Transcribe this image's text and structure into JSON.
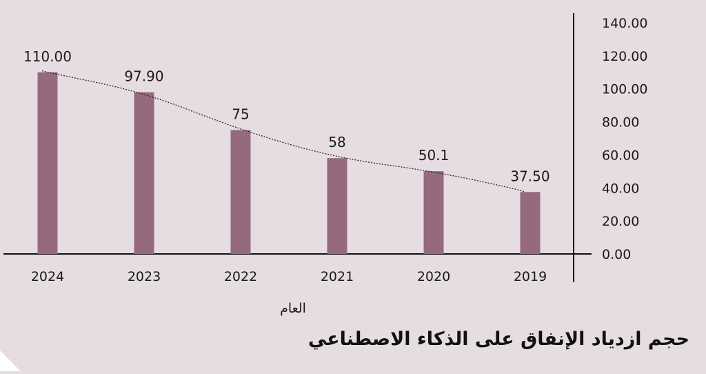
{
  "chart_data": {
    "type": "bar",
    "title": "حجم ازدياد الإنفاق على الذكاء الاصطناعي",
    "xlabel": "العام",
    "ylabel": "",
    "categories": [
      "2024",
      "2023",
      "2022",
      "2021",
      "2020",
      "2019"
    ],
    "values": [
      110.0,
      97.9,
      75,
      58,
      50.1,
      37.5
    ],
    "data_labels": [
      "110.00",
      "97.90",
      "75",
      "58",
      "50.1",
      "37.50"
    ],
    "ylim": [
      0,
      140
    ],
    "yticks": [
      "0.00",
      "20.00",
      "40.00",
      "60.00",
      "80.00",
      "100.00",
      "120.00",
      "140.00"
    ],
    "y_axis_side": "right",
    "grid": false,
    "trendline": true,
    "legend": "none",
    "colors": {
      "bar": "#956a7c",
      "background": "#e6dde2",
      "axis": "#111111",
      "trendline": "#222222"
    }
  }
}
